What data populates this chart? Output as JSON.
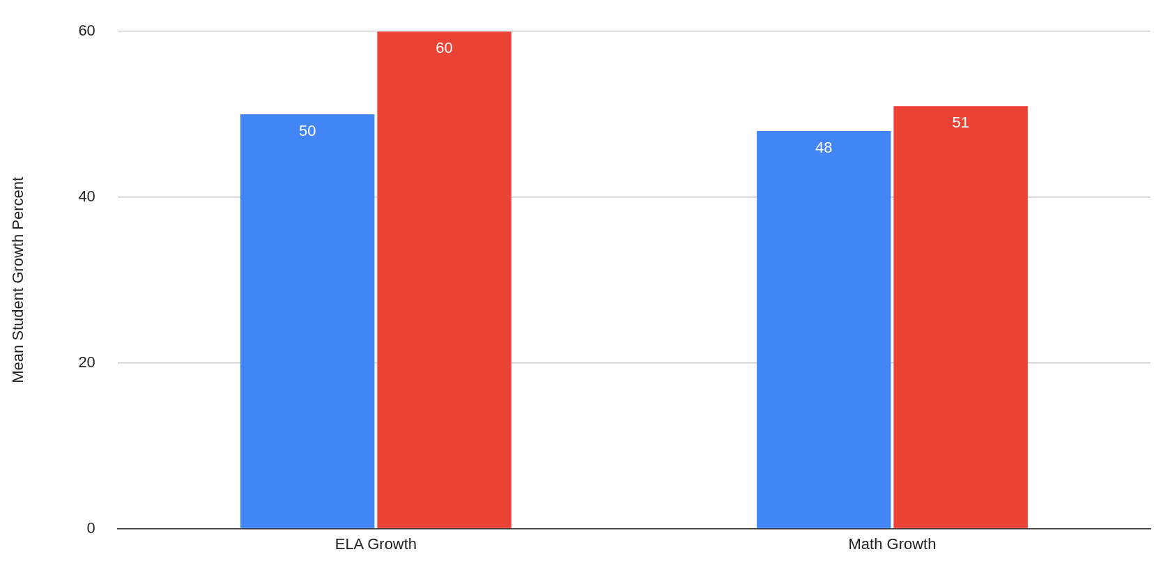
{
  "chart_data": {
    "type": "bar",
    "ylabel": "Mean Student Growth Percent",
    "categories": [
      "ELA Growth",
      "Math Growth"
    ],
    "series": [
      {
        "color": "#4285f4",
        "values": [
          50,
          48
        ]
      },
      {
        "color": "#ea4335",
        "values": [
          60,
          51
        ]
      }
    ],
    "ylim": [
      0,
      60
    ],
    "yticks": [
      0,
      20,
      40,
      60
    ],
    "grid": "y",
    "data_labels": true,
    "legend": false
  }
}
